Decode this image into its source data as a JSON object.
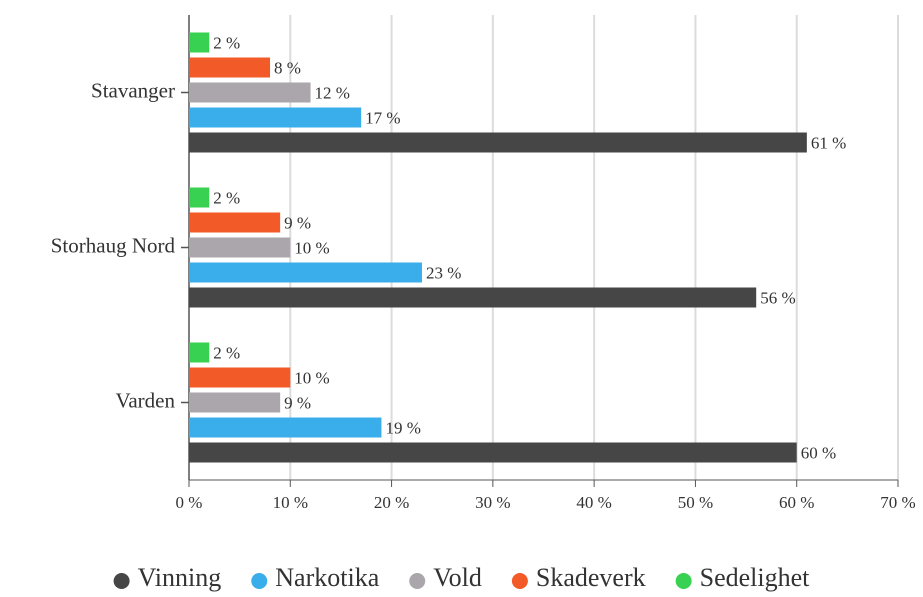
{
  "chart_data": {
    "type": "bar",
    "orientation": "horizontal",
    "categories": [
      "Stavanger",
      "Storhaug Nord",
      "Varden"
    ],
    "series": [
      {
        "name": "Vinning",
        "color": "#464646",
        "values": [
          61,
          56,
          60
        ],
        "value_labels": [
          "61 %",
          "56 %",
          "60 %"
        ]
      },
      {
        "name": "Narkotika",
        "color": "#3aaeea",
        "values": [
          17,
          23,
          19
        ],
        "value_labels": [
          "17 %",
          "23 %",
          "19 %"
        ]
      },
      {
        "name": "Vold",
        "color": "#aba6ab",
        "values": [
          12,
          10,
          9
        ],
        "value_labels": [
          "12 %",
          "10 %",
          "9 %"
        ]
      },
      {
        "name": "Skadeverk",
        "color": "#f25a27",
        "values": [
          8,
          9,
          10
        ],
        "value_labels": [
          "8 %",
          "9 %",
          "10 %"
        ]
      },
      {
        "name": "Sedelighet",
        "color": "#39d152",
        "values": [
          2,
          2,
          2
        ],
        "value_labels": [
          "2 %",
          "2 %",
          "2 %"
        ]
      }
    ],
    "xlim": [
      0,
      70
    ],
    "xticks": [
      {
        "value": 0,
        "label": "0 %"
      },
      {
        "value": 10,
        "label": "10 %"
      },
      {
        "value": 20,
        "label": "20 %"
      },
      {
        "value": 30,
        "label": "30 %"
      },
      {
        "value": 40,
        "label": "40 %"
      },
      {
        "value": 50,
        "label": "50 %"
      },
      {
        "value": 60,
        "label": "60 %"
      },
      {
        "value": 70,
        "label": "70 %"
      }
    ],
    "grid": true,
    "legend": "bottom"
  }
}
